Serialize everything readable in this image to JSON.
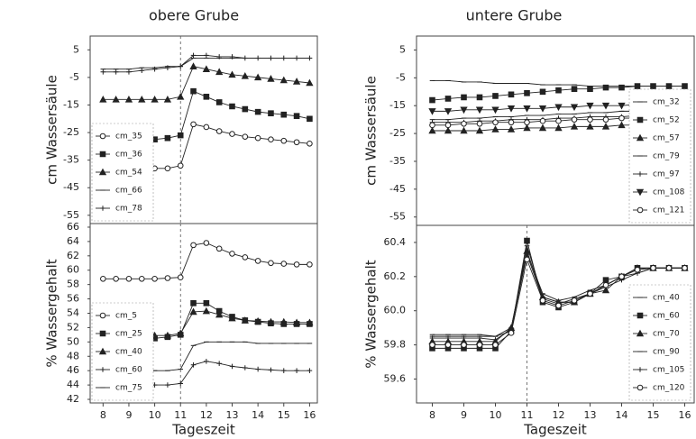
{
  "chart_data": [
    {
      "type": "line",
      "title": "obere Grube",
      "ylabel": "cm Wassersäule",
      "x": [
        8,
        8.5,
        9,
        9.5,
        10,
        10.5,
        11,
        11.5,
        12,
        12.5,
        13,
        13.5,
        14,
        14.5,
        15,
        15.5,
        16
      ],
      "xlim": [
        7.5,
        16.3
      ],
      "ylim": [
        -58,
        10
      ],
      "yticks": [
        5,
        -5,
        -15,
        -25,
        -35,
        -45,
        -55
      ],
      "vline": 11,
      "legend": "lower left",
      "series": [
        {
          "name": "cm_35",
          "marker": "circle",
          "color": "#222",
          "values": [
            -39,
            -39,
            -38.5,
            -38.5,
            -38,
            -38,
            -37,
            -22,
            -23,
            -24.5,
            -25.5,
            -26.5,
            -27,
            -27.5,
            -28,
            -28.5,
            -29
          ]
        },
        {
          "name": "cm_36",
          "marker": "square",
          "color": "#222",
          "values": [
            -29,
            -29,
            -28.5,
            -28,
            -27.5,
            -27,
            -26,
            -10,
            -12,
            -14,
            -15.5,
            -16.5,
            -17.5,
            -18,
            -18.5,
            -19,
            -20
          ]
        },
        {
          "name": "cm_54",
          "marker": "triangle",
          "color": "#222",
          "values": [
            -13,
            -13,
            -13,
            -13,
            -13,
            -13,
            -12,
            -1,
            -2,
            -3,
            -4,
            -4.5,
            -5,
            -5.5,
            -6,
            -6.5,
            -7
          ]
        },
        {
          "name": "cm_66",
          "marker": "dash",
          "color": "#222",
          "values": [
            -2,
            -2,
            -2,
            -1.5,
            -1.5,
            -1,
            -1,
            2,
            2,
            2,
            2,
            2,
            2,
            2,
            2,
            2,
            2
          ]
        },
        {
          "name": "cm_78",
          "marker": "plus",
          "color": "#222",
          "values": [
            -3,
            -3,
            -3,
            -2.5,
            -2,
            -1.5,
            -1,
            3,
            3,
            2.5,
            2.5,
            2,
            2,
            2,
            2,
            2,
            2
          ]
        }
      ]
    },
    {
      "type": "line",
      "ylabel": "% Wassergehalt",
      "xlabel": "Tageszeit",
      "x": [
        8,
        8.5,
        9,
        9.5,
        10,
        10.5,
        11,
        11.5,
        12,
        12.5,
        13,
        13.5,
        14,
        14.5,
        15,
        15.5,
        16
      ],
      "xlim": [
        7.5,
        16.3
      ],
      "xticks": [
        8,
        9,
        10,
        11,
        12,
        13,
        14,
        15,
        16
      ],
      "ylim": [
        41.5,
        66.5
      ],
      "yticks": [
        42,
        44,
        46,
        48,
        50,
        52,
        54,
        56,
        58,
        60,
        62,
        64,
        66
      ],
      "vline": 11,
      "legend": "lower left",
      "series": [
        {
          "name": "cm_5",
          "marker": "circle",
          "color": "#222",
          "values": [
            58.8,
            58.8,
            58.8,
            58.8,
            58.8,
            58.9,
            59,
            63.5,
            63.8,
            63,
            62.3,
            61.8,
            61.3,
            61,
            60.9,
            60.8,
            60.8
          ]
        },
        {
          "name": "cm_25",
          "marker": "square",
          "color": "#222",
          "values": [
            50.2,
            50.2,
            50.3,
            50.3,
            50.5,
            50.7,
            51,
            55.4,
            55.4,
            54.3,
            53.5,
            53,
            52.8,
            52.6,
            52.5,
            52.5,
            52.5
          ]
        },
        {
          "name": "cm_40",
          "marker": "triangle",
          "color": "#222",
          "values": [
            50.8,
            50.8,
            50.8,
            50.8,
            50.9,
            50.9,
            51.2,
            54.2,
            54.3,
            53.8,
            53.3,
            53,
            52.9,
            52.8,
            52.8,
            52.7,
            52.7
          ]
        },
        {
          "name": "cm_60",
          "marker": "plus",
          "color": "#222",
          "values": [
            44,
            44,
            44,
            44,
            44,
            44,
            44.2,
            46.8,
            47.3,
            47,
            46.6,
            46.4,
            46.2,
            46.1,
            46,
            46,
            46
          ]
        },
        {
          "name": "cm_75",
          "marker": "dash",
          "color": "#222",
          "values": [
            46,
            46,
            46,
            46,
            46,
            46,
            46.2,
            49.5,
            50,
            50,
            50,
            50,
            49.8,
            49.8,
            49.8,
            49.8,
            49.8
          ]
        }
      ]
    },
    {
      "type": "line",
      "title": "untere Grube",
      "ylabel": "cm Wassersäule",
      "x": [
        8,
        8.5,
        9,
        9.5,
        10,
        10.5,
        11,
        11.5,
        12,
        12.5,
        13,
        13.5,
        14,
        14.5,
        15,
        15.5,
        16
      ],
      "xlim": [
        7.5,
        16.3
      ],
      "ylim": [
        -58,
        10
      ],
      "yticks": [
        5,
        -5,
        -15,
        -25,
        -35,
        -45,
        -55
      ],
      "legend": "lower right",
      "series": [
        {
          "name": "cm_32",
          "marker": "dash",
          "color": "#222",
          "values": [
            -6,
            -6,
            -6.5,
            -6.5,
            -7,
            -7,
            -7,
            -7.5,
            -7.5,
            -7.5,
            -8,
            -8,
            -8,
            -8,
            -8,
            -8,
            -8
          ]
        },
        {
          "name": "cm_52",
          "marker": "square",
          "color": "#222",
          "values": [
            -13,
            -12.5,
            -12,
            -12,
            -11.5,
            -11,
            -10.5,
            -10,
            -9.5,
            -9,
            -9,
            -8.5,
            -8.5,
            -8,
            -8,
            -8,
            -8
          ]
        },
        {
          "name": "cm_57",
          "marker": "triangle",
          "color": "#222",
          "values": [
            -24,
            -24,
            -24,
            -24,
            -23.5,
            -23.5,
            -23,
            -23,
            -23,
            -22.5,
            -22.5,
            -22.5,
            -22,
            -22,
            null,
            null,
            null
          ]
        },
        {
          "name": "cm_79",
          "marker": "dash",
          "color": "#222",
          "values": [
            -20,
            -20,
            -19.5,
            -19.5,
            -19,
            -19,
            -18.5,
            -18.5,
            -18,
            -18,
            -17.5,
            -17.5,
            -17,
            -17,
            null,
            null,
            null
          ]
        },
        {
          "name": "cm_97",
          "marker": "plus",
          "color": "#222",
          "values": [
            -21,
            -21,
            -21,
            -20.5,
            -20.5,
            -20,
            -20,
            -20,
            -19.5,
            -19.5,
            -19,
            -19,
            -19,
            -18.5,
            null,
            null,
            null
          ]
        },
        {
          "name": "cm_108",
          "marker": "tri-down",
          "color": "#222",
          "values": [
            -17,
            -17,
            -16.5,
            -16.5,
            -16.5,
            -16,
            -16,
            -16,
            -15.5,
            -15.5,
            -15,
            -15,
            -15,
            -14.5,
            null,
            null,
            null
          ]
        },
        {
          "name": "cm_121",
          "marker": "circle",
          "color": "#222",
          "values": [
            -22,
            -22,
            -21.5,
            -21.5,
            -21,
            -21,
            -21,
            -20.5,
            -20.5,
            -20,
            -20,
            -20,
            -19.5,
            -19.5,
            null,
            null,
            null
          ]
        }
      ]
    },
    {
      "type": "line",
      "ylabel": "% Wassergehalt",
      "xlabel": "Tageszeit",
      "x": [
        8,
        8.5,
        9,
        9.5,
        10,
        10.5,
        11,
        11.5,
        12,
        12.5,
        13,
        13.5,
        14,
        14.5,
        15,
        15.5,
        16
      ],
      "xlim": [
        7.5,
        16.3
      ],
      "xticks": [
        8,
        9,
        10,
        11,
        12,
        13,
        14,
        15,
        16
      ],
      "ylim": [
        59.46,
        60.5
      ],
      "yticks": [
        59.6,
        59.8,
        {
          "value": 60,
          "label": "60.0"
        },
        60.2,
        60.4
      ],
      "vline": 11,
      "legend": "lower right",
      "series": [
        {
          "name": "cm_40",
          "marker": "dash",
          "color": "#222",
          "values": [
            59.85,
            59.85,
            59.85,
            59.85,
            59.85,
            59.88,
            60.38,
            60.08,
            60.05,
            60.05,
            60.1,
            60.15,
            60.2,
            60.25,
            60.25,
            60.25,
            60.25
          ]
        },
        {
          "name": "cm_60",
          "marker": "square",
          "color": "#222",
          "values": [
            59.78,
            59.78,
            59.78,
            59.78,
            59.78,
            59.88,
            60.41,
            60.05,
            60.02,
            60.05,
            60.1,
            60.18,
            60.2,
            60.25,
            60.25,
            60.25,
            60.25
          ]
        },
        {
          "name": "cm_70",
          "marker": "triangle",
          "color": "#222",
          "values": [
            59.82,
            59.82,
            59.82,
            59.82,
            59.82,
            59.9,
            60.35,
            60.08,
            60.05,
            60.05,
            60.1,
            60.12,
            60.2,
            60.25,
            60.25,
            60.25,
            60.25
          ]
        },
        {
          "name": "cm_90",
          "marker": "dash",
          "color": "#222",
          "values": [
            59.86,
            59.86,
            59.86,
            59.86,
            59.85,
            59.9,
            60.34,
            60.1,
            60.06,
            60.08,
            60.12,
            60.15,
            60.2,
            60.22,
            60.25,
            60.25,
            60.25
          ]
        },
        {
          "name": "cm_105",
          "marker": "plus",
          "color": "#222",
          "values": [
            59.84,
            59.84,
            59.84,
            59.84,
            59.83,
            59.89,
            60.33,
            60.07,
            60.04,
            60.07,
            60.1,
            60.14,
            60.18,
            60.22,
            60.25,
            60.25,
            60.25
          ]
        },
        {
          "name": "cm_120",
          "marker": "circle",
          "color": "#222",
          "values": [
            59.8,
            59.8,
            59.8,
            59.8,
            59.8,
            59.87,
            60.3,
            60.06,
            60.03,
            60.06,
            60.1,
            60.15,
            60.2,
            60.24,
            60.25,
            60.25,
            60.25
          ]
        }
      ]
    }
  ]
}
